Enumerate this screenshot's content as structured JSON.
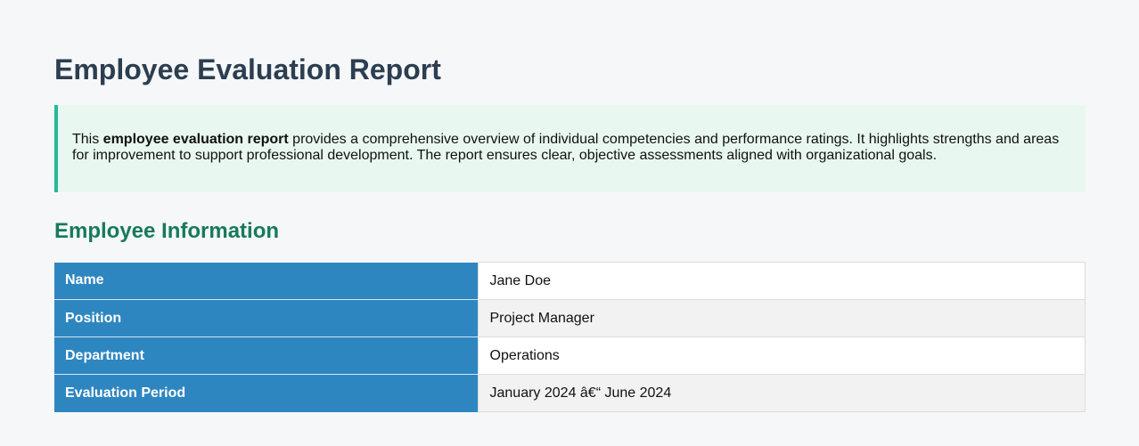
{
  "report": {
    "title": "Employee Evaluation Report",
    "intro": {
      "prefix": "This ",
      "bold": "employee evaluation report",
      "suffix": " provides a comprehensive overview of individual competencies and performance ratings. It highlights strengths and areas for improvement to support professional development. The report ensures clear, objective assessments aligned with organizational goals."
    },
    "section_title": "Employee Information",
    "employee_info": [
      {
        "label": "Name",
        "value": "Jane Doe"
      },
      {
        "label": "Position",
        "value": "Project Manager"
      },
      {
        "label": "Department",
        "value": "Operations"
      },
      {
        "label": "Evaluation Period",
        "value": "January 2024 â€“ June 2024"
      }
    ]
  },
  "colors": {
    "title": "#2c3e50",
    "section_title": "#167a5c",
    "intro_bg": "#e8f8f0",
    "intro_accent": "#26b996",
    "label_bg": "#2e86c1",
    "page_bg": "#f6f7f9"
  }
}
